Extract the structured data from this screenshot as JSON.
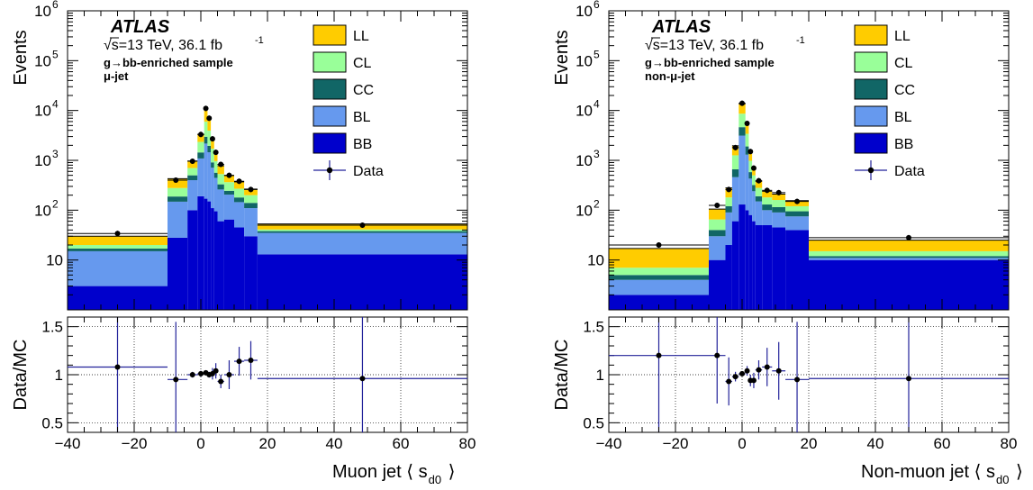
{
  "chart_data": [
    {
      "type": "histogram-stacked-with-ratio",
      "experiment": "ATLAS",
      "energy_lumi": "√s=13 TeV, 36.1 fb",
      "lumi_exponent": "-1",
      "sample": "g→bb-enriched sample",
      "selection": "μ-jet",
      "ylabel": "Events",
      "ratio_ylabel": "Data/MC",
      "xlabel": "Muon jet ⟨ s",
      "xlabel_sub": "d0",
      "xlabel_close": "⟩",
      "log_y": true,
      "grid": true,
      "legend_position": "top-right",
      "xlim": [
        -40,
        80
      ],
      "ylim": [
        1,
        1000000
      ],
      "ratio_ylim": [
        0.4,
        1.6
      ],
      "x_ticks": [
        -40,
        -20,
        0,
        20,
        40,
        60,
        80
      ],
      "y_ticks": [
        {
          "v": 10,
          "label": "10"
        },
        {
          "v": 100,
          "label": "10",
          "sup": "2"
        },
        {
          "v": 1000,
          "label": "10",
          "sup": "3"
        },
        {
          "v": 10000,
          "label": "10",
          "sup": "4"
        },
        {
          "v": 100000,
          "label": "10",
          "sup": "5"
        },
        {
          "v": 1000000,
          "label": "10",
          "sup": "6"
        }
      ],
      "ratio_ticks": [
        {
          "v": 0.5,
          "label": "0.5"
        },
        {
          "v": 1,
          "label": "1"
        },
        {
          "v": 1.5,
          "label": "1.5"
        }
      ],
      "series_names": [
        "BB",
        "BL",
        "CC",
        "CL",
        "LL"
      ],
      "legend": [
        "LL",
        "CL",
        "CC",
        "BL",
        "BB",
        "Data"
      ],
      "colors": {
        "LL": "#ffcc00",
        "CL": "#99ff99",
        "CC": "#116666",
        "BL": "#6699ee",
        "BB": "#0000cc",
        "Data": "#000000",
        "err": "#22229a"
      },
      "bins": [
        {
          "lo": -40,
          "hi": -10,
          "BB": 3,
          "BL": 12,
          "CC": 2,
          "CL": 3,
          "LL": 10,
          "data": 34,
          "ratio": 1.08,
          "ratio_err": 1.4
        },
        {
          "lo": -10,
          "hi": -4,
          "BB": 28,
          "BL": 120,
          "CC": 40,
          "CL": 90,
          "LL": 150,
          "data": 400,
          "ratio": 0.95,
          "ratio_err": 0.6
        },
        {
          "lo": -4,
          "hi": -1,
          "BB": 100,
          "BL": 300,
          "CC": 100,
          "CL": 200,
          "LL": 270,
          "data": 960,
          "ratio": 1.0,
          "ratio_err": 0.03
        },
        {
          "lo": -1,
          "hi": 1,
          "BB": 190,
          "BL": 900,
          "CC": 350,
          "CL": 900,
          "LL": 1000,
          "data": 3300,
          "ratio": 1.01,
          "ratio_err": 0.03
        },
        {
          "lo": 1,
          "hi": 2,
          "BB": 170,
          "BL": 2000,
          "CC": 800,
          "CL": 3000,
          "LL": 5000,
          "data": 11000,
          "ratio": 1.02,
          "ratio_err": 0.02
        },
        {
          "lo": 2,
          "hi": 3,
          "BB": 150,
          "BL": 1300,
          "CC": 500,
          "CL": 2000,
          "LL": 3000,
          "data": 7000,
          "ratio": 1.0,
          "ratio_err": 0.03
        },
        {
          "lo": 3,
          "hi": 4,
          "BB": 110,
          "BL": 600,
          "CC": 200,
          "CL": 800,
          "LL": 1000,
          "data": 2700,
          "ratio": 1.01,
          "ratio_err": 0.06
        },
        {
          "lo": 4,
          "hi": 5,
          "BB": 95,
          "BL": 350,
          "CC": 120,
          "CL": 400,
          "LL": 500,
          "data": 1450,
          "ratio": 1.04,
          "ratio_err": 0.08
        },
        {
          "lo": 5,
          "hi": 7,
          "BB": 60,
          "BL": 200,
          "CC": 70,
          "CL": 200,
          "LL": 250,
          "data": 830,
          "ratio": 0.93,
          "ratio_err": 0.07
        },
        {
          "lo": 7,
          "hi": 10,
          "BB": 65,
          "BL": 140,
          "CC": 40,
          "CL": 120,
          "LL": 130,
          "data": 500,
          "ratio": 1.0,
          "ratio_err": 0.15
        },
        {
          "lo": 10,
          "hi": 13,
          "BB": 45,
          "BL": 100,
          "CC": 35,
          "CL": 90,
          "LL": 100,
          "data": 380,
          "ratio": 1.14,
          "ratio_err": 0.15
        },
        {
          "lo": 13,
          "hi": 17,
          "BB": 30,
          "BL": 80,
          "CC": 30,
          "CL": 60,
          "LL": 65,
          "data": 260,
          "ratio": 1.15,
          "ratio_err": 0.2
        },
        {
          "lo": 17,
          "hi": 80,
          "BB": 13,
          "BL": 22,
          "CC": 3,
          "CL": 3,
          "LL": 12,
          "data": 50,
          "ratio": 0.96,
          "ratio_err": 1.4
        }
      ],
      "data_x": [
        -25,
        -7.5,
        -2.5,
        0,
        1.5,
        2.5,
        3.5,
        4.5,
        6,
        8.5,
        11.5,
        15,
        48.5
      ]
    },
    {
      "type": "histogram-stacked-with-ratio",
      "experiment": "ATLAS",
      "energy_lumi": "√s=13 TeV, 36.1 fb",
      "lumi_exponent": "-1",
      "sample": "g→bb-enriched sample",
      "selection": "non-μ-jet",
      "ylabel": "Events",
      "ratio_ylabel": "Data/MC",
      "xlabel": "Non-muon jet ⟨ s",
      "xlabel_sub": "d0",
      "xlabel_close": "⟩",
      "log_y": true,
      "grid": true,
      "legend_position": "top-right",
      "xlim": [
        -40,
        80
      ],
      "ylim": [
        1,
        1000000
      ],
      "ratio_ylim": [
        0.4,
        1.6
      ],
      "x_ticks": [
        -40,
        -20,
        0,
        20,
        40,
        60,
        80
      ],
      "y_ticks": [
        {
          "v": 10,
          "label": "10"
        },
        {
          "v": 100,
          "label": "10",
          "sup": "2"
        },
        {
          "v": 1000,
          "label": "10",
          "sup": "3"
        },
        {
          "v": 10000,
          "label": "10",
          "sup": "4"
        },
        {
          "v": 100000,
          "label": "10",
          "sup": "5"
        },
        {
          "v": 1000000,
          "label": "10",
          "sup": "6"
        }
      ],
      "ratio_ticks": [
        {
          "v": 0.5,
          "label": "0.5"
        },
        {
          "v": 1,
          "label": "1"
        },
        {
          "v": 1.5,
          "label": "1.5"
        }
      ],
      "series_names": [
        "BB",
        "BL",
        "CC",
        "CL",
        "LL"
      ],
      "legend": [
        "LL",
        "CL",
        "CC",
        "BL",
        "BB",
        "Data"
      ],
      "colors": {
        "LL": "#ffcc00",
        "CL": "#99ff99",
        "CC": "#116666",
        "BL": "#6699ee",
        "BB": "#0000cc",
        "Data": "#000000",
        "err": "#22229a"
      },
      "bins": [
        {
          "lo": -40,
          "hi": -10,
          "BB": 2,
          "BL": 2,
          "CC": 1,
          "CL": 2,
          "LL": 10,
          "data": 20,
          "ratio": 1.2,
          "ratio_err": 1.4
        },
        {
          "lo": -10,
          "hi": -5,
          "BB": 10,
          "BL": 20,
          "CC": 10,
          "CL": 25,
          "LL": 40,
          "data": 125,
          "ratio": 1.2,
          "ratio_err": 0.5
        },
        {
          "lo": -5,
          "hi": -3,
          "BB": 20,
          "BL": 70,
          "CC": 30,
          "CL": 60,
          "LL": 100,
          "data": 260,
          "ratio": 0.93,
          "ratio_err": 0.25
        },
        {
          "lo": -3,
          "hi": -1,
          "BB": 60,
          "BL": 400,
          "CC": 200,
          "CL": 600,
          "LL": 700,
          "data": 1800,
          "ratio": 0.98,
          "ratio_err": 0.05
        },
        {
          "lo": -1,
          "hi": 1,
          "BB": 130,
          "BL": 3000,
          "CC": 1500,
          "CL": 4000,
          "LL": 5000,
          "data": 14000,
          "ratio": 1.01,
          "ratio_err": 0.02
        },
        {
          "lo": 1,
          "hi": 2,
          "BB": 100,
          "BL": 1200,
          "CC": 600,
          "CL": 1500,
          "LL": 2000,
          "data": 5500,
          "ratio": 1.04,
          "ratio_err": 0.05
        },
        {
          "lo": 2,
          "hi": 3,
          "BB": 80,
          "BL": 350,
          "CC": 150,
          "CL": 400,
          "LL": 500,
          "data": 1500,
          "ratio": 0.94,
          "ratio_err": 0.06
        },
        {
          "lo": 3,
          "hi": 4,
          "BB": 60,
          "BL": 180,
          "CC": 80,
          "CL": 180,
          "LL": 220,
          "data": 700,
          "ratio": 0.94,
          "ratio_err": 0.08
        },
        {
          "lo": 4,
          "hi": 6,
          "BB": 50,
          "BL": 100,
          "CC": 40,
          "CL": 90,
          "LL": 100,
          "data": 390,
          "ratio": 1.05,
          "ratio_err": 0.1
        },
        {
          "lo": 6,
          "hi": 9,
          "BB": 50,
          "BL": 50,
          "CC": 30,
          "CL": 50,
          "LL": 60,
          "data": 250,
          "ratio": 1.08,
          "ratio_err": 0.2
        },
        {
          "lo": 9,
          "hi": 13,
          "BB": 45,
          "BL": 45,
          "CC": 25,
          "CL": 45,
          "LL": 50,
          "data": 225,
          "ratio": 1.04,
          "ratio_err": 0.3
        },
        {
          "lo": 13,
          "hi": 20,
          "BB": 40,
          "BL": 35,
          "CC": 20,
          "CL": 25,
          "LL": 35,
          "data": 150,
          "ratio": 0.95,
          "ratio_err": 0.6
        },
        {
          "lo": 20,
          "hi": 80,
          "BB": 10,
          "BL": 1,
          "CC": 1,
          "CL": 3,
          "LL": 10,
          "data": 28,
          "ratio": 0.96,
          "ratio_err": 1.4
        }
      ],
      "data_x": [
        -25,
        -7.5,
        -4,
        -2,
        0,
        1.5,
        2.5,
        3.5,
        5,
        7.5,
        11,
        16.5,
        50
      ]
    }
  ]
}
